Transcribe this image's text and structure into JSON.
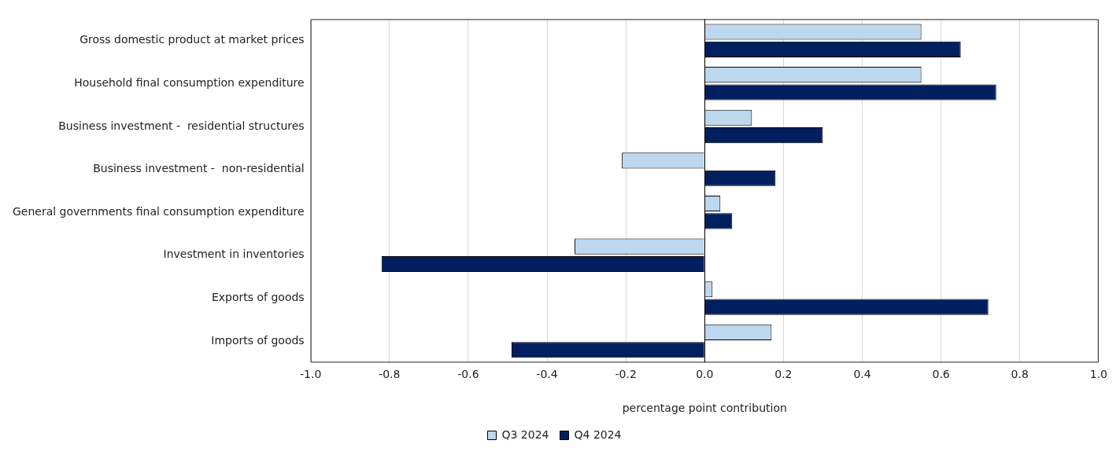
{
  "chart_data": {
    "type": "bar",
    "orientation": "horizontal",
    "xlabel": "percentage point contribution",
    "categories": [
      "Gross domestic product at market prices",
      "Household final consumption expenditure",
      "Business investment -  residential structures",
      "Business investment -  non-residential",
      "General governments final consumption expenditure",
      "Investment in inventories",
      "Exports of goods",
      "Imports of goods"
    ],
    "series": [
      {
        "name": "Q3 2024",
        "color": "#bdd7ee",
        "values": [
          0.55,
          0.55,
          0.12,
          -0.21,
          0.04,
          -0.33,
          0.02,
          0.17
        ]
      },
      {
        "name": "Q4 2024",
        "color": "#001f5f",
        "values": [
          0.65,
          0.74,
          0.3,
          0.18,
          0.07,
          -0.82,
          0.72,
          -0.49
        ]
      }
    ],
    "xlim": [
      -1.0,
      1.0
    ],
    "xticks": [
      {
        "value": -1,
        "label": "-1.0"
      },
      {
        "value": -0.8,
        "label": "-0.8"
      },
      {
        "value": -0.6,
        "label": "-0.6"
      },
      {
        "value": -0.4,
        "label": "-0.4"
      },
      {
        "value": -0.2,
        "label": "-0.2"
      },
      {
        "value": 0,
        "label": "0.0"
      },
      {
        "value": 0.2,
        "label": "0.2"
      },
      {
        "value": 0.4,
        "label": "0.4"
      },
      {
        "value": 0.6,
        "label": "0.6"
      },
      {
        "value": 0.8,
        "label": "0.8"
      },
      {
        "value": 1,
        "label": "1.0"
      }
    ],
    "grid": "x",
    "legend": "bottom"
  }
}
